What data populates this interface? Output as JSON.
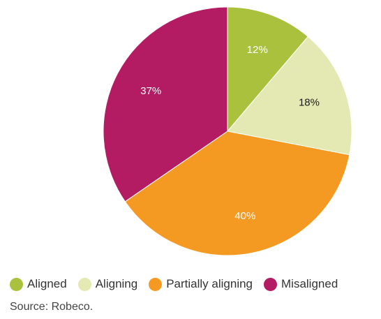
{
  "chart_data": {
    "type": "pie",
    "slices": [
      {
        "label": "Aligned",
        "value": 12,
        "display": "12%",
        "color": "#a9c13c",
        "label_color": "#ffffff"
      },
      {
        "label": "Aligning",
        "value": 18,
        "display": "18%",
        "color": "#e4e9b3",
        "label_color": "#1a1a1a"
      },
      {
        "label": "Partially aligning",
        "value": 40,
        "display": "40%",
        "color": "#f49a23",
        "label_color": "#ffffff"
      },
      {
        "label": "Misaligned",
        "value": 37,
        "display": "37%",
        "color": "#b31c63",
        "label_color": "#ffffff"
      }
    ],
    "start_angle": "12 o'clock, clockwise",
    "legend_position": "bottom"
  },
  "legend": [
    {
      "label": "Aligned",
      "color": "#a9c13c"
    },
    {
      "label": "Aligning",
      "color": "#e4e9b3"
    },
    {
      "label": "Partially aligning",
      "color": "#f49a23"
    },
    {
      "label": "Misaligned",
      "color": "#b31c63"
    }
  ],
  "source": "Source: Robeco."
}
